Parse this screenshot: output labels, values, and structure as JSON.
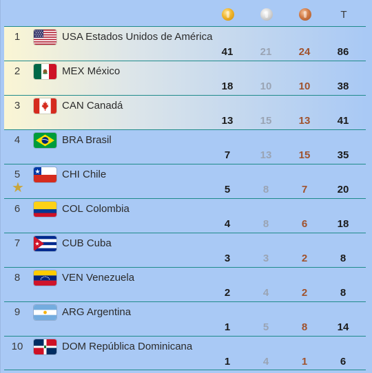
{
  "header": {
    "gold_icon": "gold-medal-icon",
    "silver_icon": "silver-medal-icon",
    "bronze_icon": "bronze-medal-icon",
    "total_label": "T"
  },
  "colors": {
    "background": "#a9c9f5",
    "divider": "#1e8a8a",
    "gold": "#f0b52c",
    "silver": "#d8d8d8",
    "bronze": "#d07a45",
    "silver_count": "#9aa4b4",
    "bronze_count": "#a0522d",
    "host_star": "#c9a53a"
  },
  "rows": [
    {
      "rank": "1",
      "code": "USA",
      "name": "Estados Unidos de América",
      "country": "USA Estados Unidos de América",
      "flag": "usa-flag-icon",
      "gold": "41",
      "silver": "21",
      "bronze": "24",
      "total": "86"
    },
    {
      "rank": "2",
      "code": "MEX",
      "name": "México",
      "country": "MEX México",
      "flag": "mexico-flag-icon",
      "gold": "18",
      "silver": "10",
      "bronze": "10",
      "total": "38"
    },
    {
      "rank": "3",
      "code": "CAN",
      "name": "Canadá",
      "country": "CAN Canadá",
      "flag": "canada-flag-icon",
      "gold": "13",
      "silver": "15",
      "bronze": "13",
      "total": "41"
    },
    {
      "rank": "4",
      "code": "BRA",
      "name": "Brasil",
      "country": "BRA Brasil",
      "flag": "brazil-flag-icon",
      "gold": "7",
      "silver": "13",
      "bronze": "15",
      "total": "35"
    },
    {
      "rank": "5",
      "code": "CHI",
      "name": "Chile",
      "country": "CHI Chile",
      "flag": "chile-flag-icon",
      "gold": "5",
      "silver": "8",
      "bronze": "7",
      "total": "20",
      "host": "star-icon"
    },
    {
      "rank": "6",
      "code": "COL",
      "name": "Colombia",
      "country": "COL Colombia",
      "flag": "colombia-flag-icon",
      "gold": "4",
      "silver": "8",
      "bronze": "6",
      "total": "18"
    },
    {
      "rank": "7",
      "code": "CUB",
      "name": "Cuba",
      "country": "CUB Cuba",
      "flag": "cuba-flag-icon",
      "gold": "3",
      "silver": "3",
      "bronze": "2",
      "total": "8"
    },
    {
      "rank": "8",
      "code": "VEN",
      "name": "Venezuela",
      "country": "VEN Venezuela",
      "flag": "venezuela-flag-icon",
      "gold": "2",
      "silver": "4",
      "bronze": "2",
      "total": "8"
    },
    {
      "rank": "9",
      "code": "ARG",
      "name": "Argentina",
      "country": "ARG Argentina",
      "flag": "argentina-flag-icon",
      "gold": "1",
      "silver": "5",
      "bronze": "8",
      "total": "14"
    },
    {
      "rank": "10",
      "code": "DOM",
      "name": "República Dominicana",
      "country": "DOM República Dominicana",
      "flag": "dominican-republic-flag-icon",
      "gold": "1",
      "silver": "4",
      "bronze": "1",
      "total": "6"
    }
  ]
}
